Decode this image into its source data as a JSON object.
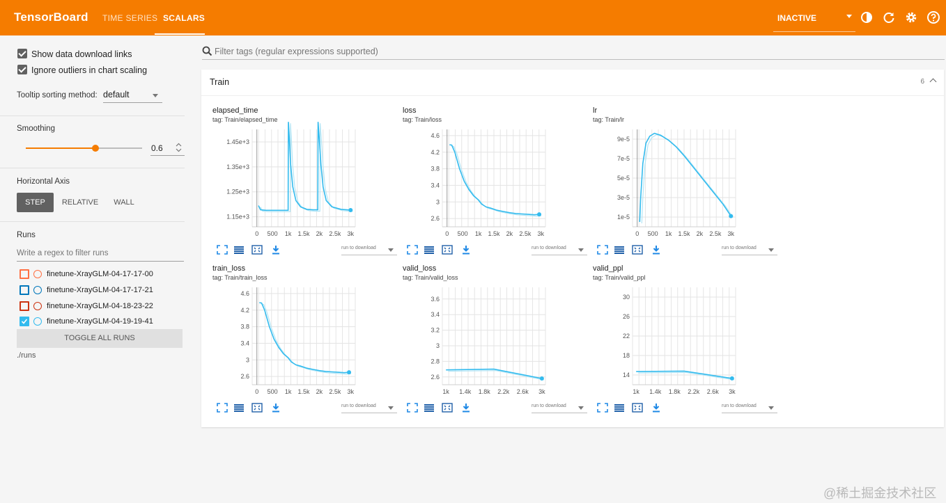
{
  "header": {
    "brand": "TensorBoard",
    "tabs": [
      "TIME SERIES",
      "SCALARS"
    ],
    "active_tab": "SCALARS",
    "status": "INACTIVE",
    "icons": [
      "theme-toggle-icon",
      "refresh-icon",
      "settings-icon",
      "help-icon"
    ]
  },
  "sidebar": {
    "show_download_links": "Show data download links",
    "ignore_outliers": "Ignore outliers in chart scaling",
    "tooltip_label": "Tooltip sorting method:",
    "tooltip_value": "default",
    "smoothing_label": "Smoothing",
    "smoothing_value": "0.6",
    "smoothing": 0.6,
    "axis_label": "Horizontal Axis",
    "axis_options": [
      "STEP",
      "RELATIVE",
      "WALL"
    ],
    "axis_selected": "STEP",
    "runs_label": "Runs",
    "runs_filter_placeholder": "Write a regex to filter runs",
    "runs": [
      {
        "name": "finetune-XrayGLM-04-17-17-00",
        "color": "#ff7043",
        "checked": false
      },
      {
        "name": "finetune-XrayGLM-04-17-17-21",
        "color": "#0077bb",
        "checked": false
      },
      {
        "name": "finetune-XrayGLM-04-18-23-22",
        "color": "#cc3311",
        "checked": false
      },
      {
        "name": "finetune-XrayGLM-04-19-19-41",
        "color": "#33bbee",
        "checked": true
      }
    ],
    "toggle_all": "TOGGLE ALL RUNS",
    "logdir": "./runs"
  },
  "main": {
    "filter_placeholder": "Filter tags (regular expressions supported)",
    "card_title": "Train",
    "card_count": "6",
    "download_label": "run to download"
  },
  "watermark": "@稀土掘金技术社区",
  "colors": {
    "accent": "#f57c00",
    "series": "#33bbee",
    "smoothed_raw": "#b3e5f5"
  },
  "chart_data": [
    {
      "type": "line",
      "title": "elapsed_time",
      "tag": "tag: Train/elapsed_time",
      "x_ticks": [
        "0",
        "500",
        "1k",
        "1.5k",
        "2k",
        "2.5k",
        "3k"
      ],
      "x_tick_values": [
        0,
        500,
        1000,
        1500,
        2000,
        2500,
        3000
      ],
      "y_ticks": [
        "1.45e+3",
        "1.35e+3",
        "1.25e+3",
        "1.15e+3"
      ],
      "y_tick_values": [
        1450,
        1350,
        1250,
        1150
      ],
      "xlim": [
        -150,
        3150
      ],
      "ylim": [
        1110,
        1500
      ],
      "series": [
        {
          "values": [
            [
              50,
              1195
            ],
            [
              120,
              1178
            ],
            [
              300,
              1176
            ],
            [
              600,
              1176
            ],
            [
              900,
              1176
            ],
            [
              1000,
              1176
            ],
            [
              1010,
              1530
            ],
            [
              1040,
              1460
            ],
            [
              1080,
              1360
            ],
            [
              1150,
              1270
            ],
            [
              1250,
              1215
            ],
            [
              1400,
              1190
            ],
            [
              1600,
              1180
            ],
            [
              1800,
              1178
            ],
            [
              1950,
              1178
            ],
            [
              1960,
              1530
            ],
            [
              2000,
              1460
            ],
            [
              2050,
              1360
            ],
            [
              2120,
              1270
            ],
            [
              2220,
              1215
            ],
            [
              2400,
              1190
            ],
            [
              2700,
              1180
            ],
            [
              3000,
              1177
            ]
          ]
        }
      ]
    },
    {
      "type": "line",
      "title": "loss",
      "tag": "tag: Train/loss",
      "x_ticks": [
        "0",
        "500",
        "1k",
        "1.5k",
        "2k",
        "2.5k",
        "3k"
      ],
      "x_tick_values": [
        0,
        500,
        1000,
        1500,
        2000,
        2500,
        3000
      ],
      "y_ticks": [
        "4.6",
        "4.2",
        "3.8",
        "3.4",
        "3",
        "2.6"
      ],
      "y_tick_values": [
        4.6,
        4.2,
        3.8,
        3.4,
        3.0,
        2.6
      ],
      "xlim": [
        -150,
        3150
      ],
      "ylim": [
        2.4,
        4.75
      ],
      "series": [
        {
          "values": [
            [
              80,
              4.38
            ],
            [
              150,
              4.37
            ],
            [
              250,
              4.2
            ],
            [
              400,
              3.8
            ],
            [
              550,
              3.5
            ],
            [
              700,
              3.3
            ],
            [
              850,
              3.15
            ],
            [
              1000,
              3.05
            ],
            [
              1100,
              2.95
            ],
            [
              1250,
              2.88
            ],
            [
              1400,
              2.85
            ],
            [
              1600,
              2.8
            ],
            [
              1800,
              2.77
            ],
            [
              2000,
              2.74
            ],
            [
              2200,
              2.72
            ],
            [
              2400,
              2.71
            ],
            [
              2600,
              2.7
            ],
            [
              2800,
              2.69
            ],
            [
              2950,
              2.7
            ]
          ]
        }
      ]
    },
    {
      "type": "line",
      "title": "lr",
      "tag": "tag: Train/lr",
      "x_ticks": [
        "0",
        "500",
        "1k",
        "1.5k",
        "2k",
        "2.5k",
        "3k"
      ],
      "x_tick_values": [
        0,
        500,
        1000,
        1500,
        2000,
        2500,
        3000
      ],
      "y_ticks": [
        "9e-5",
        "7e-5",
        "5e-5",
        "3e-5",
        "1e-5"
      ],
      "y_tick_values": [
        9e-05,
        7e-05,
        5e-05,
        3e-05,
        1e-05
      ],
      "xlim": [
        -150,
        3150
      ],
      "ylim": [
        0,
        0.0001
      ],
      "series": [
        {
          "values": [
            [
              80,
              5e-06
            ],
            [
              110,
              3e-05
            ],
            [
              180,
              6.5e-05
            ],
            [
              280,
              8.6e-05
            ],
            [
              400,
              9.3e-05
            ],
            [
              550,
              9.6e-05
            ],
            [
              750,
              9.4e-05
            ],
            [
              1000,
              8.9e-05
            ],
            [
              1250,
              8.2e-05
            ],
            [
              1500,
              7.3e-05
            ],
            [
              1750,
              6.3e-05
            ],
            [
              2000,
              5.3e-05
            ],
            [
              2250,
              4.3e-05
            ],
            [
              2500,
              3.3e-05
            ],
            [
              2750,
              2.3e-05
            ],
            [
              3000,
              1.1e-05
            ]
          ]
        }
      ]
    },
    {
      "type": "line",
      "title": "train_loss",
      "tag": "tag: Train/train_loss",
      "x_ticks": [
        "0",
        "500",
        "1k",
        "1.5k",
        "2k",
        "2.5k",
        "3k"
      ],
      "x_tick_values": [
        0,
        500,
        1000,
        1500,
        2000,
        2500,
        3000
      ],
      "y_ticks": [
        "4.6",
        "4.2",
        "3.8",
        "3.4",
        "3",
        "2.6"
      ],
      "y_tick_values": [
        4.6,
        4.2,
        3.8,
        3.4,
        3.0,
        2.6
      ],
      "xlim": [
        -150,
        3150
      ],
      "ylim": [
        2.4,
        4.75
      ],
      "series": [
        {
          "values": [
            [
              80,
              4.38
            ],
            [
              150,
              4.37
            ],
            [
              250,
              4.2
            ],
            [
              400,
              3.8
            ],
            [
              550,
              3.5
            ],
            [
              700,
              3.3
            ],
            [
              850,
              3.15
            ],
            [
              1000,
              3.05
            ],
            [
              1100,
              2.95
            ],
            [
              1250,
              2.88
            ],
            [
              1400,
              2.85
            ],
            [
              1600,
              2.8
            ],
            [
              1800,
              2.77
            ],
            [
              2000,
              2.74
            ],
            [
              2200,
              2.72
            ],
            [
              2400,
              2.71
            ],
            [
              2600,
              2.7
            ],
            [
              2800,
              2.69
            ],
            [
              2950,
              2.7
            ]
          ]
        }
      ]
    },
    {
      "type": "line",
      "title": "valid_loss",
      "tag": "tag: Train/valid_loss",
      "x_ticks": [
        "1k",
        "1.4k",
        "1.8k",
        "2.2k",
        "2.6k",
        "3k"
      ],
      "x_tick_values": [
        1000,
        1400,
        1800,
        2200,
        2600,
        3000
      ],
      "y_ticks": [
        "3.6",
        "3.4",
        "3.2",
        "3",
        "2.8",
        "2.6"
      ],
      "y_tick_values": [
        3.6,
        3.4,
        3.2,
        3.0,
        2.8,
        2.6
      ],
      "xlim": [
        925,
        3075
      ],
      "ylim": [
        2.5,
        3.75
      ],
      "series": [
        {
          "values": [
            [
              1000,
              2.69
            ],
            [
              2000,
              2.7
            ],
            [
              3000,
              2.58
            ]
          ]
        }
      ]
    },
    {
      "type": "line",
      "title": "valid_ppl",
      "tag": "tag: Train/valid_ppl",
      "x_ticks": [
        "1k",
        "1.4k",
        "1.8k",
        "2.2k",
        "2.6k",
        "3k"
      ],
      "x_tick_values": [
        1000,
        1400,
        1800,
        2200,
        2600,
        3000
      ],
      "y_ticks": [
        "30",
        "26",
        "22",
        "18",
        "14"
      ],
      "y_tick_values": [
        30,
        26,
        22,
        18,
        14
      ],
      "xlim": [
        925,
        3075
      ],
      "ylim": [
        12,
        32
      ],
      "series": [
        {
          "values": [
            [
              1000,
              14.7
            ],
            [
              2000,
              14.8
            ],
            [
              3000,
              13.3
            ]
          ]
        }
      ]
    }
  ]
}
